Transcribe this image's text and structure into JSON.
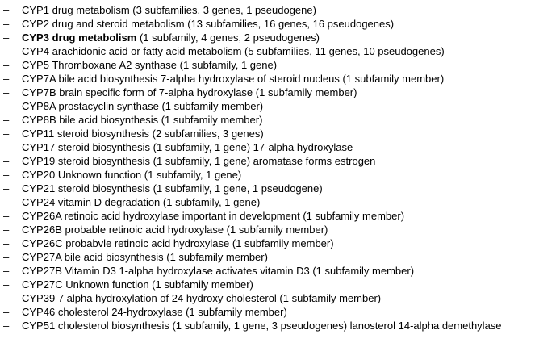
{
  "bullet": "–",
  "items": [
    {
      "name": "CYP1",
      "desc": "drug metabolism (3 subfamilies, 3 genes, 1 pseudogene)",
      "bold": false
    },
    {
      "name": "CYP2",
      "desc": "drug and steroid metabolism (13 subfamilies, 16 genes, 16 pseudogenes)",
      "bold": false
    },
    {
      "name": "CYP3 drug metabolism",
      "desc": "(1 subfamily, 4 genes, 2 pseudogenes)",
      "bold": true
    },
    {
      "name": "CYP4",
      "desc": "arachidonic acid or fatty acid metabolism (5 subfamilies, 11 genes, 10 pseudogenes)",
      "bold": false
    },
    {
      "name": "CYP5",
      "desc": "Thromboxane A2 synthase (1 subfamily, 1 gene)",
      "bold": false
    },
    {
      "name": "CYP7A",
      "desc": "bile acid biosynthesis 7-alpha hydroxylase of steroid nucleus (1 subfamily member)",
      "bold": false
    },
    {
      "name": "CYP7B",
      "desc": "brain specific form of 7-alpha hydroxylase (1 subfamily member)",
      "bold": false
    },
    {
      "name": "CYP8A",
      "desc": "prostacyclin synthase (1 subfamily member)",
      "bold": false
    },
    {
      "name": "CYP8B",
      "desc": "bile acid biosynthesis (1 subfamily member)",
      "bold": false
    },
    {
      "name": "CYP11",
      "desc": "steroid biosynthesis (2 subfamilies, 3 genes)",
      "bold": false
    },
    {
      "name": "CYP17",
      "desc": "steroid biosynthesis (1 subfamily, 1 gene) 17-alpha hydroxylase",
      "bold": false
    },
    {
      "name": "CYP19",
      "desc": "steroid biosynthesis (1 subfamily, 1 gene) aromatase forms estrogen",
      "bold": false
    },
    {
      "name": "CYP20",
      "desc": "Unknown function (1 subfamily, 1 gene)",
      "bold": false
    },
    {
      "name": "CYP21",
      "desc": "steroid biosynthesis (1 subfamily, 1 gene, 1 pseudogene)",
      "bold": false
    },
    {
      "name": "CYP24",
      "desc": "vitamin D degradation (1 subfamily, 1 gene)",
      "bold": false
    },
    {
      "name": "CYP26A",
      "desc": "retinoic acid hydroxylase important in development (1 subfamily member)",
      "bold": false
    },
    {
      "name": "CYP26B",
      "desc": "probable retinoic acid hydroxylase (1 subfamily member)",
      "bold": false
    },
    {
      "name": "CYP26C",
      "desc": "probabvle retinoic acid hydroxylase (1 subfamily member)",
      "bold": false
    },
    {
      "name": "CYP27A",
      "desc": "bile acid biosynthesis (1 subfamily member)",
      "bold": false
    },
    {
      "name": "CYP27B",
      "desc": "Vitamin D3 1-alpha hydroxylase activates vitamin D3 (1 subfamily member)",
      "bold": false
    },
    {
      "name": "CYP27C",
      "desc": "Unknown function (1 subfamily member)",
      "bold": false
    },
    {
      "name": "CYP39",
      "desc": "7 alpha hydroxylation of 24 hydroxy cholesterol (1 subfamily member)",
      "bold": false
    },
    {
      "name": "CYP46",
      "desc": "cholesterol 24-hydroxylase (1 subfamily member)",
      "bold": false
    },
    {
      "name": "CYP51",
      "desc": "cholesterol biosynthesis (1 subfamily, 1 gene, 3 pseudogenes) lanosterol 14-alpha demethylase",
      "bold": false
    }
  ]
}
